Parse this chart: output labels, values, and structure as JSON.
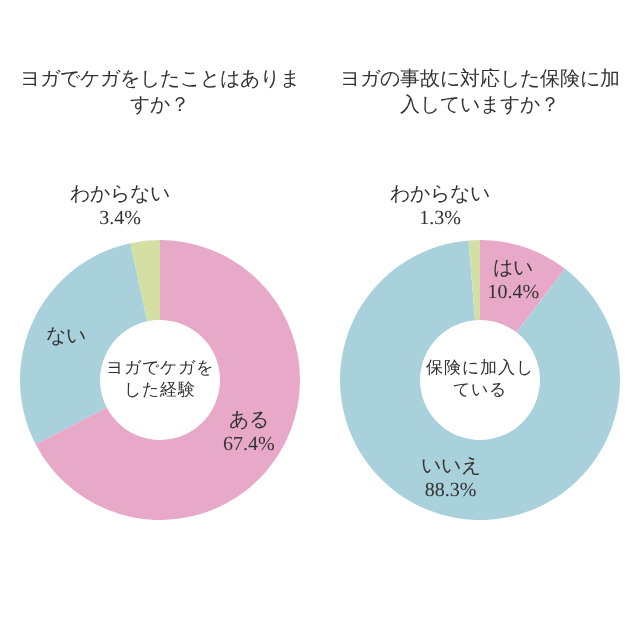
{
  "chart_data": [
    {
      "type": "donut",
      "title": "ヨガでケガをしたことはありますか？",
      "categories": [
        "ある",
        "ない",
        "わからない"
      ],
      "values": [
        67.4,
        29.2,
        3.4
      ],
      "value_labels": [
        "67.4%",
        null,
        "3.4%"
      ],
      "colors": [
        "#e8a9c9",
        "#a9d1dc",
        "#d3dfa3"
      ],
      "annotations": [
        "ヨガでケガをした経験"
      ]
    },
    {
      "type": "donut",
      "title": "ヨガの事故に対応した保険に加入していますか？",
      "categories": [
        "はい",
        "いいえ",
        "わからない"
      ],
      "values": [
        10.4,
        88.3,
        1.3
      ],
      "value_labels": [
        "10.4%",
        "88.3%",
        "1.3%"
      ],
      "colors": [
        "#e8a9c9",
        "#a9d1dc",
        "#d3dfa3"
      ],
      "annotations": [
        "保険に加入している"
      ]
    }
  ]
}
